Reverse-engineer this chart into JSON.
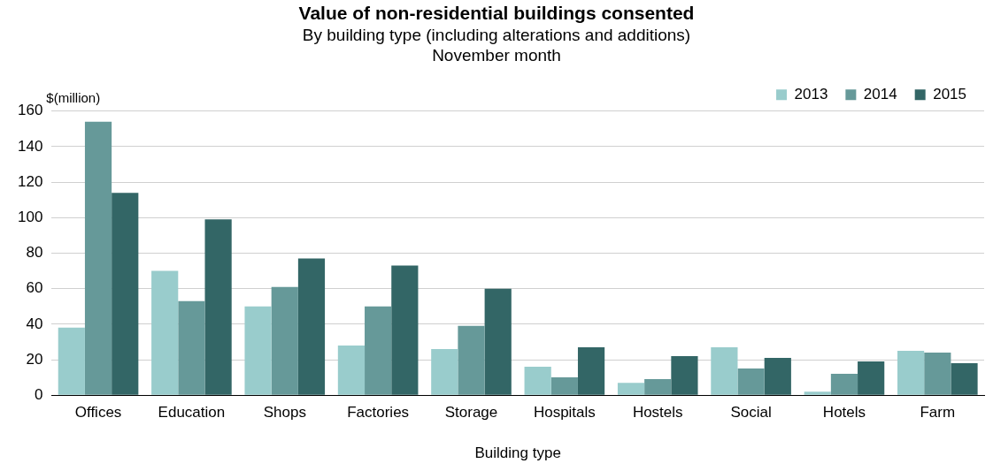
{
  "chart_data": {
    "type": "bar",
    "title": "Value of non-residential buildings consented",
    "subtitle": "By building type (including alterations and additions)\nNovember month",
    "xlabel": "Building type",
    "ylabel": "$(million)",
    "categories": [
      "Offices",
      "Education",
      "Shops",
      "Factories",
      "Storage",
      "Hospitals",
      "Hostels",
      "Social",
      "Hotels",
      "Farm"
    ],
    "series": [
      {
        "name": "2013",
        "color": "#99cccc",
        "values": [
          38,
          70,
          50,
          28,
          26,
          16,
          7,
          27,
          2,
          25
        ]
      },
      {
        "name": "2014",
        "color": "#669999",
        "values": [
          154,
          53,
          61,
          50,
          39,
          10,
          9,
          15,
          12,
          24
        ]
      },
      {
        "name": "2015",
        "color": "#336666",
        "values": [
          114,
          99,
          77,
          73,
          60,
          27,
          22,
          21,
          19,
          18
        ]
      }
    ],
    "ylim": [
      0,
      160
    ],
    "yticks": [
      0,
      20,
      40,
      60,
      80,
      100,
      120,
      140,
      160
    ],
    "grid": "y",
    "legend": "top right"
  }
}
